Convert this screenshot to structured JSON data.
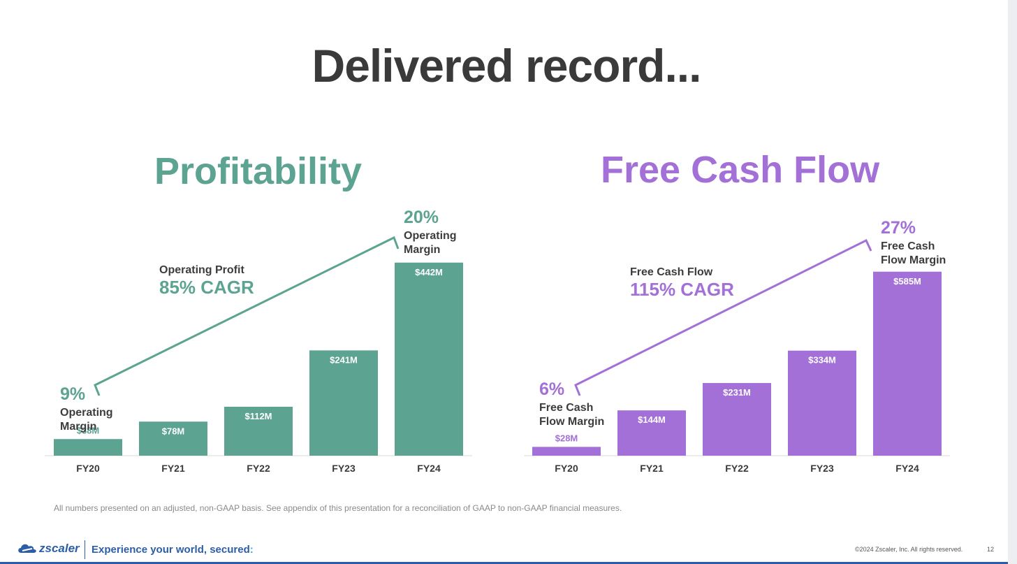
{
  "title": "Delivered record...",
  "colors": {
    "profit": "#5ca391",
    "fcf": "#a270d7",
    "dark_text": "#3a3a3a",
    "brand_blue": "#2c5ea8"
  },
  "chart_data": [
    {
      "type": "bar",
      "title": "Profitability",
      "categories": [
        "FY20",
        "FY21",
        "FY22",
        "FY23",
        "FY24"
      ],
      "series": [
        {
          "values": [
            38,
            78,
            112,
            241,
            442
          ]
        }
      ],
      "value_labels": [
        "$38M",
        "$78M",
        "$112M",
        "$241M",
        "$442M"
      ],
      "unit": "$M",
      "ylim": [
        0,
        480
      ],
      "grid": false,
      "annotations": {
        "start_pct": "9%",
        "start_label": [
          "Operating",
          "Margin"
        ],
        "end_pct": "20%",
        "end_label": [
          "Operating",
          "Margin"
        ],
        "cagr_label": "Operating Profit",
        "cagr_value": "85% CAGR"
      }
    },
    {
      "type": "bar",
      "title": "Free Cash Flow",
      "categories": [
        "FY20",
        "FY21",
        "FY22",
        "FY23",
        "FY24"
      ],
      "series": [
        {
          "values": [
            28,
            144,
            231,
            334,
            585
          ]
        }
      ],
      "value_labels": [
        "$28M",
        "$144M",
        "$231M",
        "$334M",
        "$585M"
      ],
      "unit": "$M",
      "ylim": [
        0,
        600
      ],
      "grid": false,
      "annotations": {
        "start_pct": "6%",
        "start_label": [
          "Free Cash",
          "Flow Margin"
        ],
        "end_pct": "27%",
        "end_label": [
          "Free Cash",
          "Flow Margin"
        ],
        "cagr_label": "Free Cash Flow",
        "cagr_value": "115% CAGR"
      }
    }
  ],
  "footnote": "All numbers presented on an adjusted, non-GAAP basis. See appendix of this presentation for a reconciliation of GAAP to non-GAAP financial measures.",
  "footer": {
    "logo_text": "zscaler",
    "tagline": "Experience your world, secured",
    "tagline_mark": ":",
    "copyright": "©2024 Zscaler, Inc. All rights reserved.",
    "page_number": "12"
  }
}
